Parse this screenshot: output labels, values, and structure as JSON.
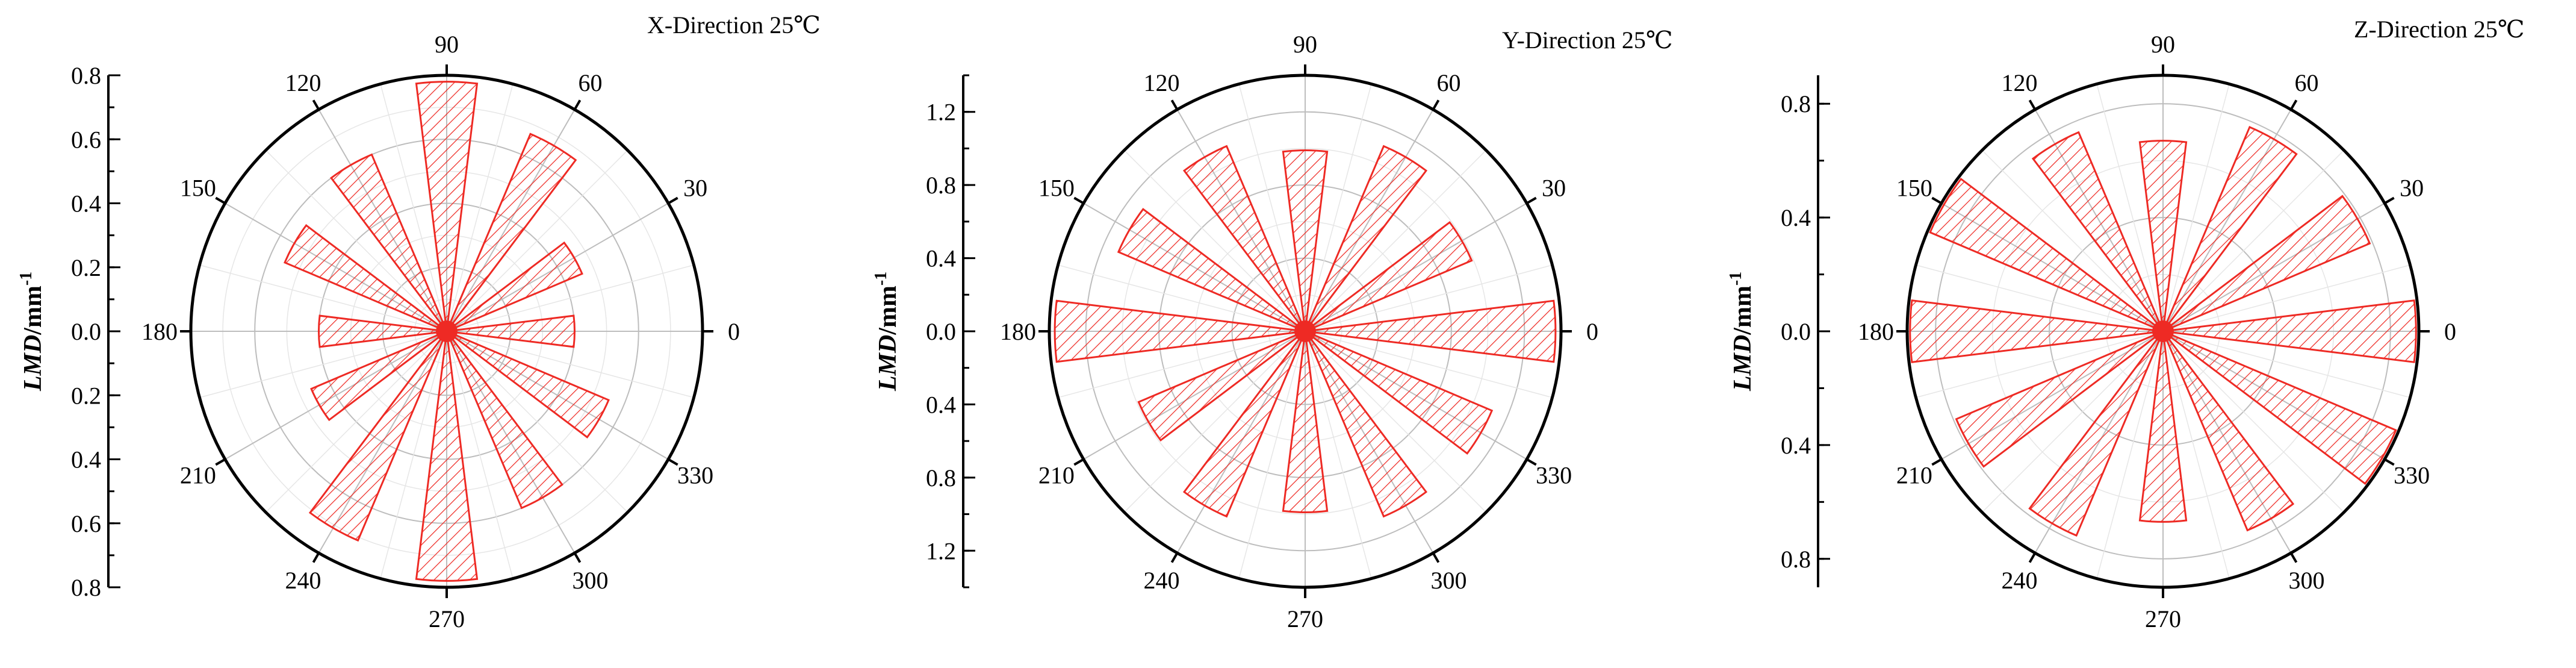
{
  "figure": {
    "ylabel_main": "LMD",
    "ylabel_unit": "/mm",
    "ylabel_exp": "-1"
  },
  "chart_data": [
    {
      "type": "polar-bar",
      "title": "X-Direction 25℃",
      "ylabel": "LMD/mm-1",
      "angle_labels": [
        "0",
        "30",
        "60",
        "90",
        "120",
        "150",
        "180",
        "210",
        "240",
        "270",
        "300",
        "330"
      ],
      "ylim": [
        0,
        0.8
      ],
      "radial_ticks": [
        "0.0",
        "0.2",
        "0.4",
        "0.6",
        "0.8"
      ],
      "bar_width_deg": 14,
      "colors": {
        "bar": "#ee2a24",
        "axis": "#000000",
        "grid": "#bdbdbd",
        "minor_grid": "#e6e6e6"
      },
      "angles": [
        0,
        30,
        60,
        90,
        120,
        150,
        180,
        210,
        240,
        270,
        300,
        330
      ],
      "values": [
        0.4,
        0.46,
        0.67,
        0.78,
        0.6,
        0.55,
        0.4,
        0.46,
        0.71,
        0.78,
        0.6,
        0.55
      ]
    },
    {
      "type": "polar-bar",
      "title": "Y-Direction 25℃",
      "ylabel": "LMD/mm-1",
      "angle_labels": [
        "0",
        "30",
        "60",
        "90",
        "120",
        "150",
        "180",
        "210",
        "240",
        "270",
        "300",
        "330"
      ],
      "ylim": [
        0,
        1.4
      ],
      "radial_ticks": [
        "0.0",
        "0.4",
        "0.8",
        "1.2"
      ],
      "bar_width_deg": 14,
      "colors": {
        "bar": "#ee2a24",
        "axis": "#000000",
        "grid": "#bdbdbd",
        "minor_grid": "#e6e6e6"
      },
      "angles": [
        0,
        30,
        60,
        90,
        120,
        150,
        180,
        210,
        240,
        270,
        300,
        330
      ],
      "values": [
        1.37,
        0.99,
        1.1,
        0.99,
        1.1,
        1.11,
        1.37,
        0.99,
        1.1,
        0.99,
        1.1,
        1.11
      ]
    },
    {
      "type": "polar-bar",
      "title": "Z-Direction 25℃",
      "ylabel": "LMD/mm-1",
      "angle_labels": [
        "0",
        "30",
        "60",
        "90",
        "120",
        "150",
        "180",
        "210",
        "240",
        "270",
        "300",
        "330"
      ],
      "ylim": [
        0,
        0.9
      ],
      "radial_ticks": [
        "0.0",
        "0.4",
        "0.8"
      ],
      "bar_width_deg": 14,
      "colors": {
        "bar": "#ee2a24",
        "axis": "#000000",
        "grid": "#bdbdbd",
        "minor_grid": "#e6e6e6"
      },
      "angles": [
        0,
        30,
        60,
        90,
        120,
        150,
        180,
        210,
        240,
        270,
        300,
        330
      ],
      "values": [
        0.89,
        0.79,
        0.78,
        0.67,
        0.76,
        0.89,
        0.89,
        0.79,
        0.78,
        0.67,
        0.76,
        0.89
      ]
    }
  ]
}
